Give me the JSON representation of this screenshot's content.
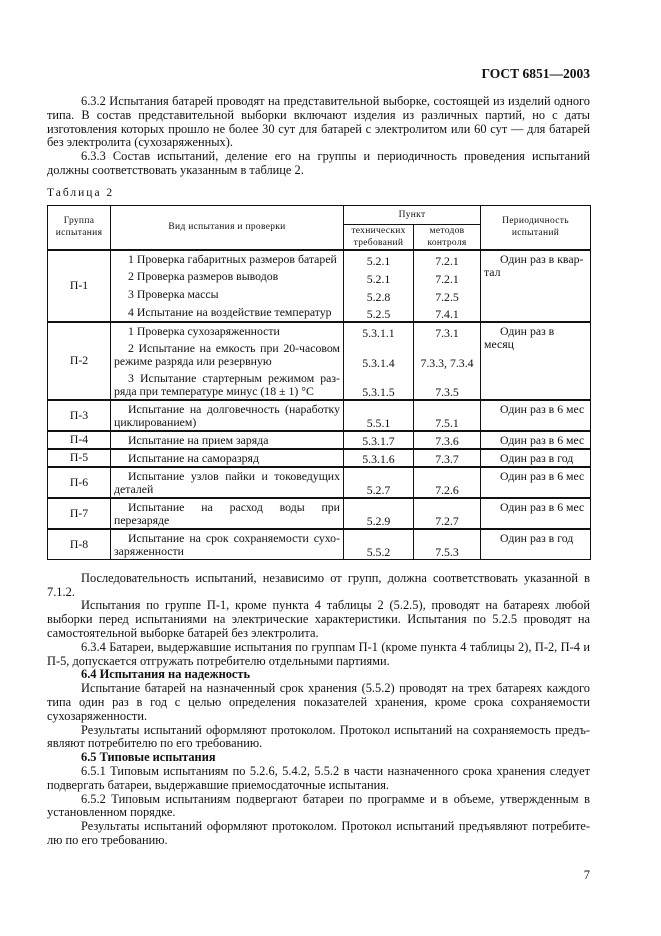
{
  "header": {
    "doc_id": "ГОСТ 6851—2003"
  },
  "intro": [
    "6.3.2  Испытания батарей проводят на представительной выборке, состоящей из изделий одного типа. В состав представительной выборки включают изделия из различных партий, но с даты изготовления которых прошло не более 30 сут для батарей с электролитом или 60 сут — для батарей без электролита (сухозаряженных).",
    "6.3.3 Состав испытаний, деление его на группы и периодичность проведения испытаний должны соответствовать указанным в таблице 2."
  ],
  "table": {
    "caption": "Таблица 2",
    "headers": {
      "group": "Группа испытания",
      "kind": "Вид испытания и проверки",
      "point": "Пункт",
      "tech": "технических требований",
      "methods": "методов контроля",
      "period": "Периодичность испытаний"
    },
    "groups": [
      {
        "group": "П-1",
        "period": "Один раз в квар-тал",
        "items": [
          {
            "kind": "1  Проверка габаритных размеров батарей",
            "tech": "5.2.1",
            "methods": "7.2.1"
          },
          {
            "kind": "2  Проверка размеров выводов",
            "tech": "5.2.1",
            "methods": "7.2.1"
          },
          {
            "kind": "3  Проверка массы",
            "tech": "5.2.8",
            "methods": "7.2.5"
          },
          {
            "kind": "4  Испытание на воздействие температур",
            "tech": "5.2.5",
            "methods": "7.4.1"
          }
        ]
      },
      {
        "group": "П-2",
        "period": "Один раз в месяц",
        "items": [
          {
            "kind": "1  Проверка сухозаряженности",
            "tech": "5.3.1.1",
            "methods": "7.3.1"
          },
          {
            "kind": "2 Испытание на емкость при 20-часовом режиме разряда или резервную",
            "tech": "5.3.1.4",
            "methods": "7.3.3, 7.3.4"
          },
          {
            "kind": "3 Испытание стартерным режимом раз-ряда при температуре минус (18 ± 1) °С",
            "tech": "5.3.1.5",
            "methods": "7.3.5"
          }
        ]
      },
      {
        "group": "П-3",
        "period": "Один раз в 6 мес",
        "items": [
          {
            "kind": "Испытание на долговечность (наработку циклированием)",
            "tech": "5.5.1",
            "methods": "7.5.1"
          }
        ]
      },
      {
        "group": "П-4",
        "period": "Один раз в 6 мес",
        "items": [
          {
            "kind": "Испытание на прием заряда",
            "tech": "5.3.1.7",
            "methods": "7.3.6"
          }
        ]
      },
      {
        "group": "П-5",
        "period": "Один раз в год",
        "items": [
          {
            "kind": "Испытание на саморазряд",
            "tech": "5.3.1.6",
            "methods": "7.3.7"
          }
        ]
      },
      {
        "group": "П-6",
        "period": "Один раз в 6 мес",
        "items": [
          {
            "kind": "Испытание узлов пайки и токоведущих деталей",
            "tech": "5.2.7",
            "methods": "7.2.6"
          }
        ]
      },
      {
        "group": "П-7",
        "period": "Один раз в 6 мес",
        "items": [
          {
            "kind": "Испытание на расход воды при перезаряде",
            "tech": "5.2.9",
            "methods": "7.2.7"
          }
        ]
      },
      {
        "group": "П-8",
        "period": "Один раз в год",
        "items": [
          {
            "kind": "Испытание на срок сохраняемости сухо-заряженности",
            "tech": "5.5.2",
            "methods": "7.5.3"
          }
        ]
      }
    ]
  },
  "body": [
    {
      "bold": false,
      "text": "Последовательность испытаний, независимо от групп, должна соответствовать указанной в 7.1.2."
    },
    {
      "bold": false,
      "text": "Испытания по группе П-1, кроме пункта 4 таблицы 2 (5.2.5), проводят на батареях любой выборки перед испытаниями на электрические характеристики. Испытания по 5.2.5 проводят на самостоятельной выборке батарей без электролита."
    },
    {
      "bold": false,
      "text": "6.3.4  Батареи, выдержавшие испытания по группам П-1 (кроме пункта 4 таблицы 2), П-2, П-4 и П-5, допускается отгружать потребителю отдельными партиями."
    },
    {
      "bold": true,
      "text": "6.4  Испытания на надежность"
    },
    {
      "bold": false,
      "text": "Испытание батарей на назначенный срок хранения (5.5.2) проводят на трех батареях каждого типа один раз в год с целью определения показателей хранения, кроме срока сохраняемости сухозаряженности."
    },
    {
      "bold": false,
      "text": "Результаты испытаний оформляют протоколом. Протокол испытаний на сохраняемость предъ-являют потребителю по его требованию."
    },
    {
      "bold": true,
      "text": "6.5  Типовые испытания"
    },
    {
      "bold": false,
      "text": "6.5.1  Типовым испытаниям по 5.2.6, 5.4.2, 5.5.2 в части назначенного срока хранения следует подвергать батареи, выдержавшие приемосдаточные испытания."
    },
    {
      "bold": false,
      "text": "6.5.2 Типовым испытаниям подвергают батареи по программе и в объеме, утвержденным в установленном порядке."
    },
    {
      "bold": false,
      "text": "Результаты испытаний оформляют протоколом. Протокол испытаний предъявляют потребите-лю по его требованию."
    }
  ],
  "footer": {
    "page_number": "7"
  }
}
